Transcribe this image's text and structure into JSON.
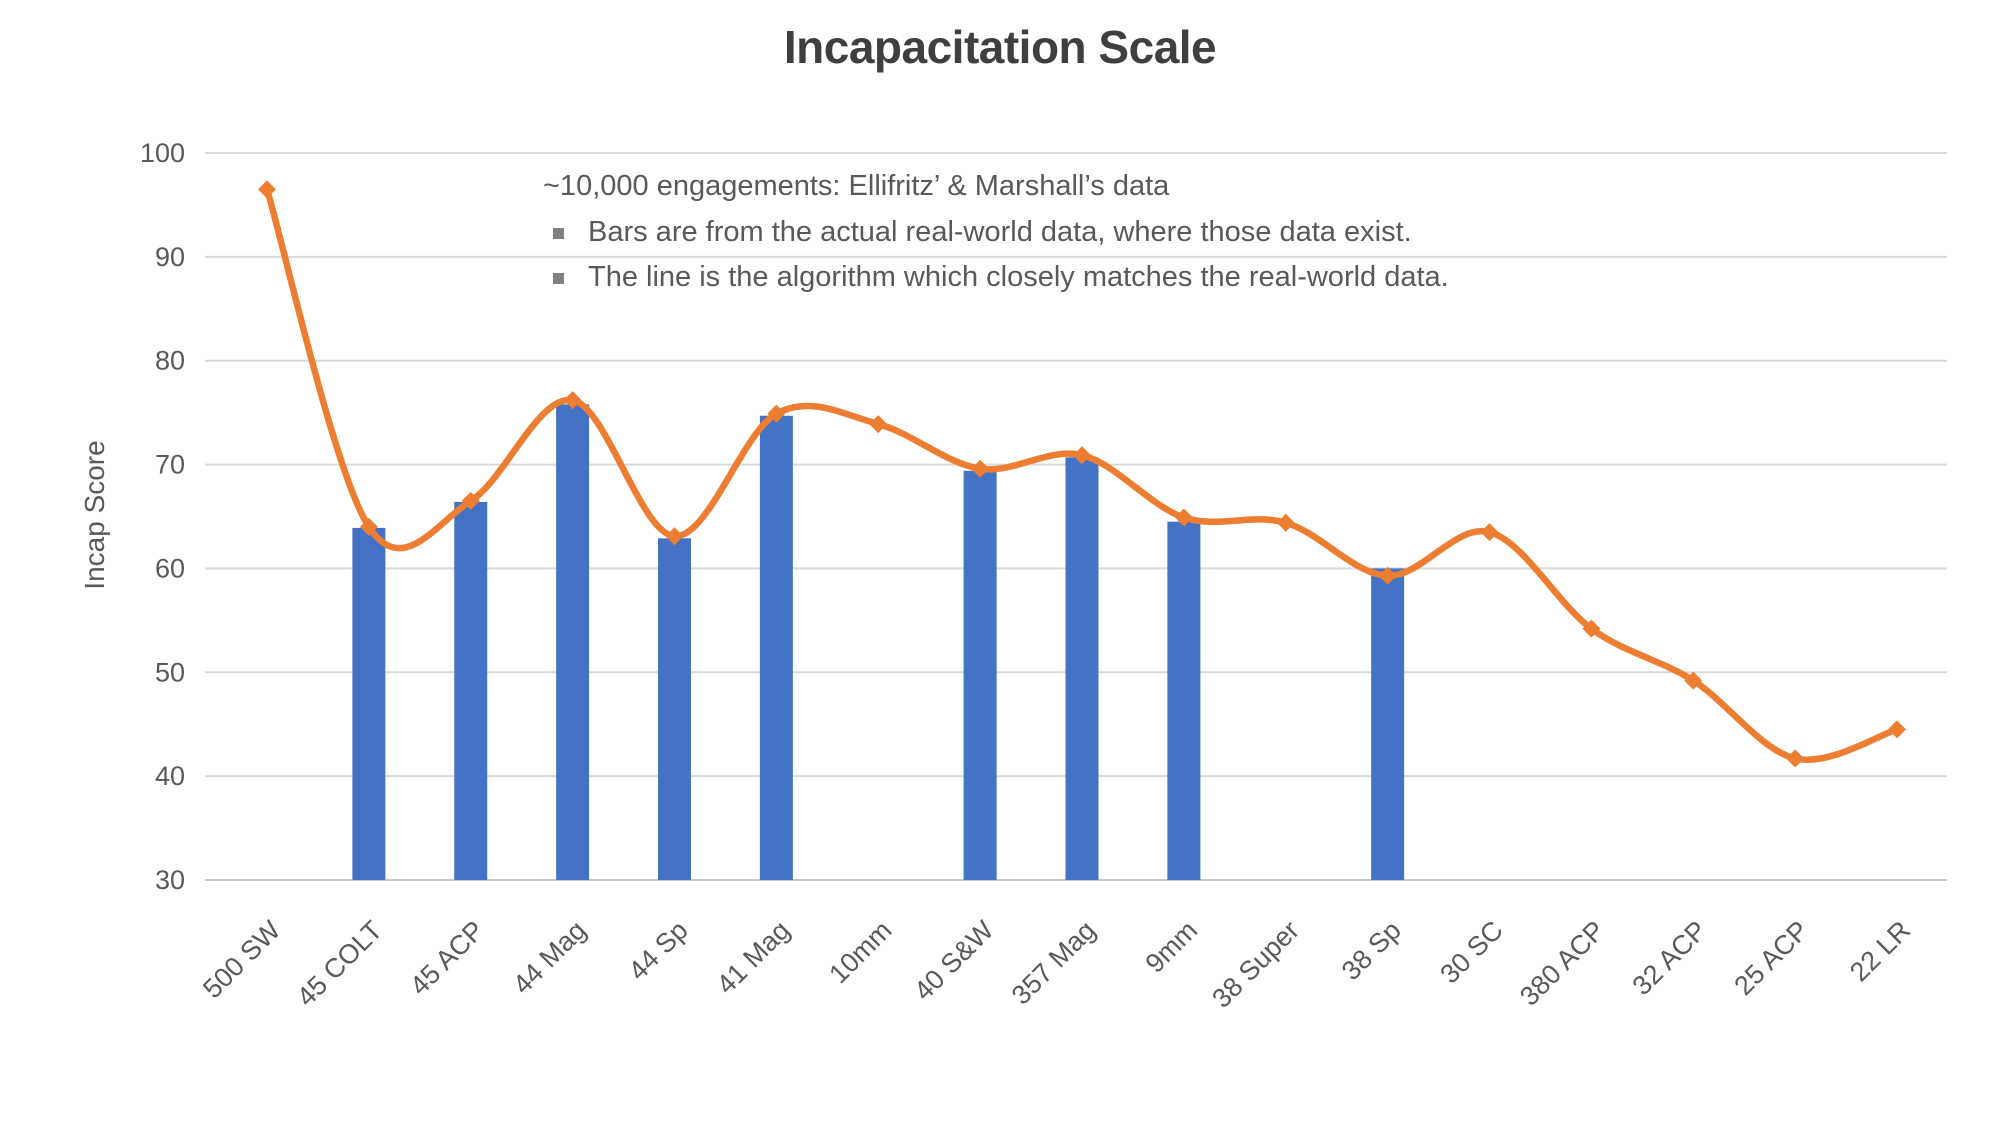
{
  "chart_data": {
    "type": "bar",
    "title": "Incapacitation Scale",
    "xlabel": "",
    "ylabel": "Incap Score",
    "categories": [
      "500 SW",
      "45 COLT",
      "45 ACP",
      "44 Mag",
      "44 Sp",
      "41 Mag",
      "10mm",
      "40 S&W",
      "357 Mag",
      "9mm",
      "38 Super",
      "38 Sp",
      "30 SC",
      "380 ACP",
      "32 ACP",
      "25 ACP",
      "22 LR"
    ],
    "series": [
      {
        "name": "Real-world data (bars)",
        "kind": "bar",
        "color": "#4472C4",
        "values": [
          null,
          63.9,
          66.4,
          75.8,
          62.9,
          74.7,
          null,
          69.4,
          70.7,
          64.5,
          null,
          60.0,
          null,
          null,
          null,
          null,
          null
        ]
      },
      {
        "name": "Algorithm (line)",
        "kind": "line",
        "color": "#ED7D31",
        "marker": "diamond",
        "values": [
          96.5,
          64.0,
          66.5,
          76.2,
          63.1,
          74.9,
          73.9,
          69.6,
          70.9,
          64.9,
          64.4,
          59.3,
          63.5,
          54.2,
          49.2,
          41.7,
          44.5
        ]
      }
    ],
    "ylim": [
      30,
      100
    ],
    "y_ticks": [
      100,
      90,
      80,
      70,
      60,
      50,
      40,
      30
    ],
    "grid": "horizontal",
    "legend": "none",
    "colors": {
      "gridline": "#D9D9D9",
      "axis_line": "#C9C9C9",
      "tick_text": "#595959",
      "title_text": "#3F3F3F",
      "annotation_text": "#595959",
      "bullet": "#7F7F7F"
    },
    "annotation": {
      "heading": "~10,000 engagements: Ellifritz’ & Marshall’s data",
      "bullets": [
        "Bars are from the actual real-world data, where those data exist.",
        "The line is the algorithm which closely matches the real-world data."
      ]
    }
  }
}
